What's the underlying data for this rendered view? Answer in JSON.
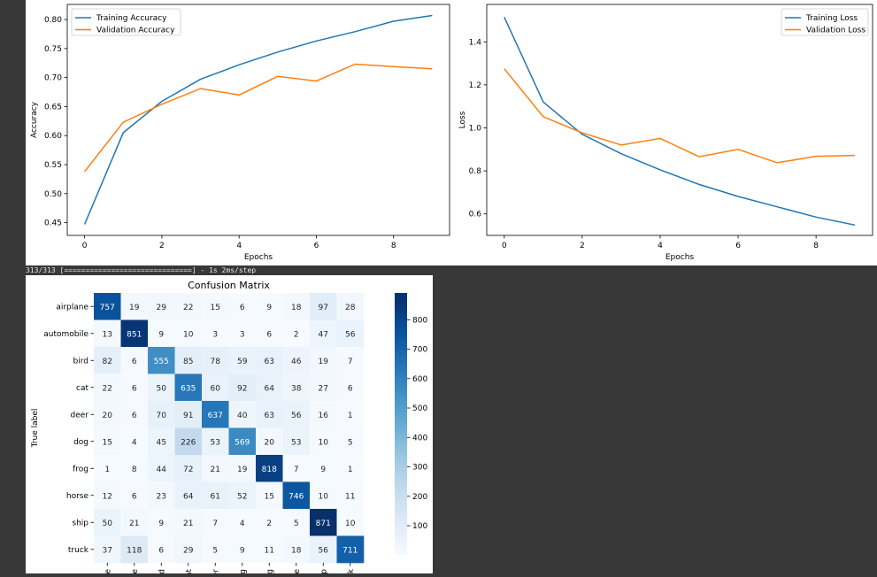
{
  "console": {
    "text": "313/313 [==============================] - 1s 2ms/step"
  },
  "chart_data": [
    {
      "type": "line",
      "title": "",
      "xlabel": "Epochs",
      "ylabel": "Accuracy",
      "x": [
        0,
        1,
        2,
        3,
        4,
        5,
        6,
        7,
        8,
        9
      ],
      "xticks": [
        0,
        2,
        4,
        6,
        8
      ],
      "yticks": [
        0.45,
        0.5,
        0.55,
        0.6,
        0.65,
        0.7,
        0.75,
        0.8
      ],
      "ytick_labels": [
        "0.45",
        "0.50",
        "0.55",
        "0.60",
        "0.65",
        "0.70",
        "0.75",
        "0.80"
      ],
      "xlim": [
        -0.45,
        9.45
      ],
      "ylim": [
        0.428,
        0.826
      ],
      "legend": "top-left",
      "series": [
        {
          "name": "Training Accuracy",
          "color": "#1f77b4",
          "values": [
            0.447,
            0.605,
            0.659,
            0.697,
            0.722,
            0.744,
            0.763,
            0.779,
            0.797,
            0.807
          ]
        },
        {
          "name": "Validation Accuracy",
          "color": "#ff7f0e",
          "values": [
            0.538,
            0.623,
            0.654,
            0.681,
            0.67,
            0.702,
            0.694,
            0.723,
            0.719,
            0.715
          ]
        }
      ]
    },
    {
      "type": "line",
      "title": "",
      "xlabel": "Epochs",
      "ylabel": "Loss",
      "x": [
        0,
        1,
        2,
        3,
        4,
        5,
        6,
        7,
        8,
        9
      ],
      "xticks": [
        0,
        2,
        4,
        6,
        8
      ],
      "yticks": [
        0.6,
        0.8,
        1.0,
        1.2,
        1.4
      ],
      "ytick_labels": [
        "0.6",
        "0.8",
        "1.0",
        "1.2",
        "1.4"
      ],
      "xlim": [
        -0.45,
        9.45
      ],
      "ylim": [
        0.5,
        1.574
      ],
      "legend": "top-right",
      "series": [
        {
          "name": "Training Loss",
          "color": "#1f77b4",
          "values": [
            1.515,
            1.12,
            0.97,
            0.88,
            0.805,
            0.737,
            0.681,
            0.633,
            0.585,
            0.548
          ]
        },
        {
          "name": "Validation Loss",
          "color": "#ff7f0e",
          "values": [
            1.275,
            1.052,
            0.977,
            0.92,
            0.951,
            0.866,
            0.9,
            0.838,
            0.868,
            0.872
          ]
        }
      ]
    },
    {
      "type": "heatmap",
      "title": "Confusion Matrix",
      "xlabel": "",
      "ylabel": "True label",
      "row_labels": [
        "airplane",
        "automobile",
        "bird",
        "cat",
        "deer",
        "dog",
        "frog",
        "horse",
        "ship",
        "truck"
      ],
      "col_labels_visible": [
        "ne",
        "le",
        "rd",
        "at",
        "er",
        "og",
        "og",
        "se",
        "ip",
        "ck"
      ],
      "matrix": [
        [
          757,
          19,
          29,
          22,
          15,
          6,
          9,
          18,
          97,
          28
        ],
        [
          13,
          851,
          9,
          10,
          3,
          3,
          6,
          2,
          47,
          56
        ],
        [
          82,
          6,
          555,
          85,
          78,
          59,
          63,
          46,
          19,
          7
        ],
        [
          22,
          6,
          50,
          635,
          60,
          92,
          64,
          38,
          27,
          6
        ],
        [
          20,
          6,
          70,
          91,
          637,
          40,
          63,
          56,
          16,
          1
        ],
        [
          15,
          4,
          45,
          226,
          53,
          569,
          20,
          53,
          10,
          5
        ],
        [
          1,
          8,
          44,
          72,
          21,
          19,
          818,
          7,
          9,
          1
        ],
        [
          12,
          6,
          23,
          64,
          61,
          52,
          15,
          746,
          10,
          11
        ],
        [
          50,
          21,
          9,
          21,
          7,
          4,
          2,
          5,
          871,
          10
        ],
        [
          37,
          118,
          6,
          29,
          5,
          9,
          11,
          18,
          56,
          711
        ]
      ],
      "vmin": 1,
      "vmax": 871,
      "colorbar_ticks": [
        100,
        200,
        300,
        400,
        500,
        600,
        700,
        800
      ],
      "colormap": "Blues"
    }
  ]
}
